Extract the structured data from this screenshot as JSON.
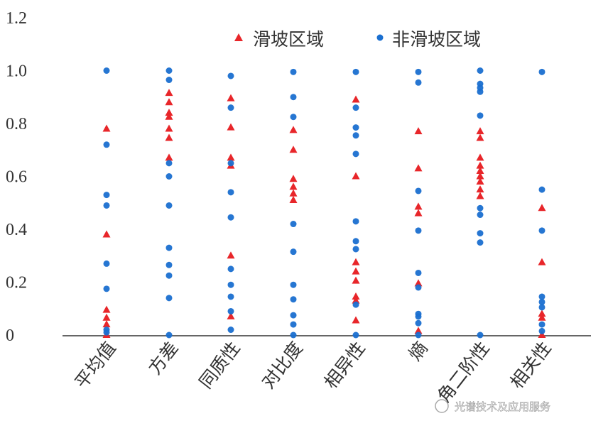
{
  "chart_data": {
    "type": "scatter",
    "title": "",
    "xlabel": "",
    "ylabel": "",
    "categories": [
      "平均值",
      "方差",
      "同质性",
      "对比度",
      "相异性",
      "熵",
      "角二阶性",
      "相关性"
    ],
    "ylim": [
      0,
      1.2
    ],
    "yticks": [
      "0",
      "0.2",
      "0.4",
      "0.6",
      "0.8",
      "1.0",
      "1.2"
    ],
    "grid": false,
    "legend_position": "top-right",
    "series": [
      {
        "name": "滑坡区域",
        "marker": "triangle",
        "color": "#e8262a",
        "values": [
          [
            0.78,
            0.38,
            0.095,
            0.065,
            0.04,
            0.0
          ],
          [
            0.915,
            0.88,
            0.84,
            0.825,
            0.78,
            0.745,
            0.67
          ],
          [
            0.895,
            0.785,
            0.67,
            0.64,
            0.3,
            0.07
          ],
          [
            0.775,
            0.7,
            0.59,
            0.56,
            0.535,
            0.51
          ],
          [
            0.89,
            0.6,
            0.275,
            0.24,
            0.205,
            0.145,
            0.13,
            0.055
          ],
          [
            0.77,
            0.63,
            0.485,
            0.46,
            0.195,
            0.015
          ],
          [
            0.77,
            0.745,
            0.67,
            0.64,
            0.62,
            0.6,
            0.58,
            0.55,
            0.525
          ],
          [
            0.48,
            0.275,
            0.08,
            0.065,
            0.0
          ]
        ]
      },
      {
        "name": "非滑坡区域",
        "marker": "circle",
        "color": "#1a6fd0",
        "values": [
          [
            1.0,
            0.72,
            0.53,
            0.49,
            0.27,
            0.175,
            0.02,
            0.01
          ],
          [
            1.0,
            0.965,
            0.65,
            0.6,
            0.49,
            0.33,
            0.265,
            0.225,
            0.14,
            0.0
          ],
          [
            0.98,
            0.86,
            0.65,
            0.54,
            0.445,
            0.25,
            0.19,
            0.145,
            0.09,
            0.02
          ],
          [
            0.995,
            0.9,
            0.825,
            0.42,
            0.315,
            0.19,
            0.135,
            0.075,
            0.04,
            0.0
          ],
          [
            0.995,
            0.86,
            0.785,
            0.755,
            0.685,
            0.43,
            0.355,
            0.325,
            0.115,
            0.0
          ],
          [
            0.995,
            0.955,
            0.545,
            0.395,
            0.235,
            0.18,
            0.08,
            0.07,
            0.045,
            0.0
          ],
          [
            1.0,
            0.95,
            0.935,
            0.92,
            0.83,
            0.48,
            0.455,
            0.385,
            0.35,
            0.0
          ],
          [
            0.995,
            0.55,
            0.395,
            0.145,
            0.125,
            0.105,
            0.04,
            0.015
          ]
        ]
      }
    ]
  },
  "watermark": "光谱技术及应用服务"
}
